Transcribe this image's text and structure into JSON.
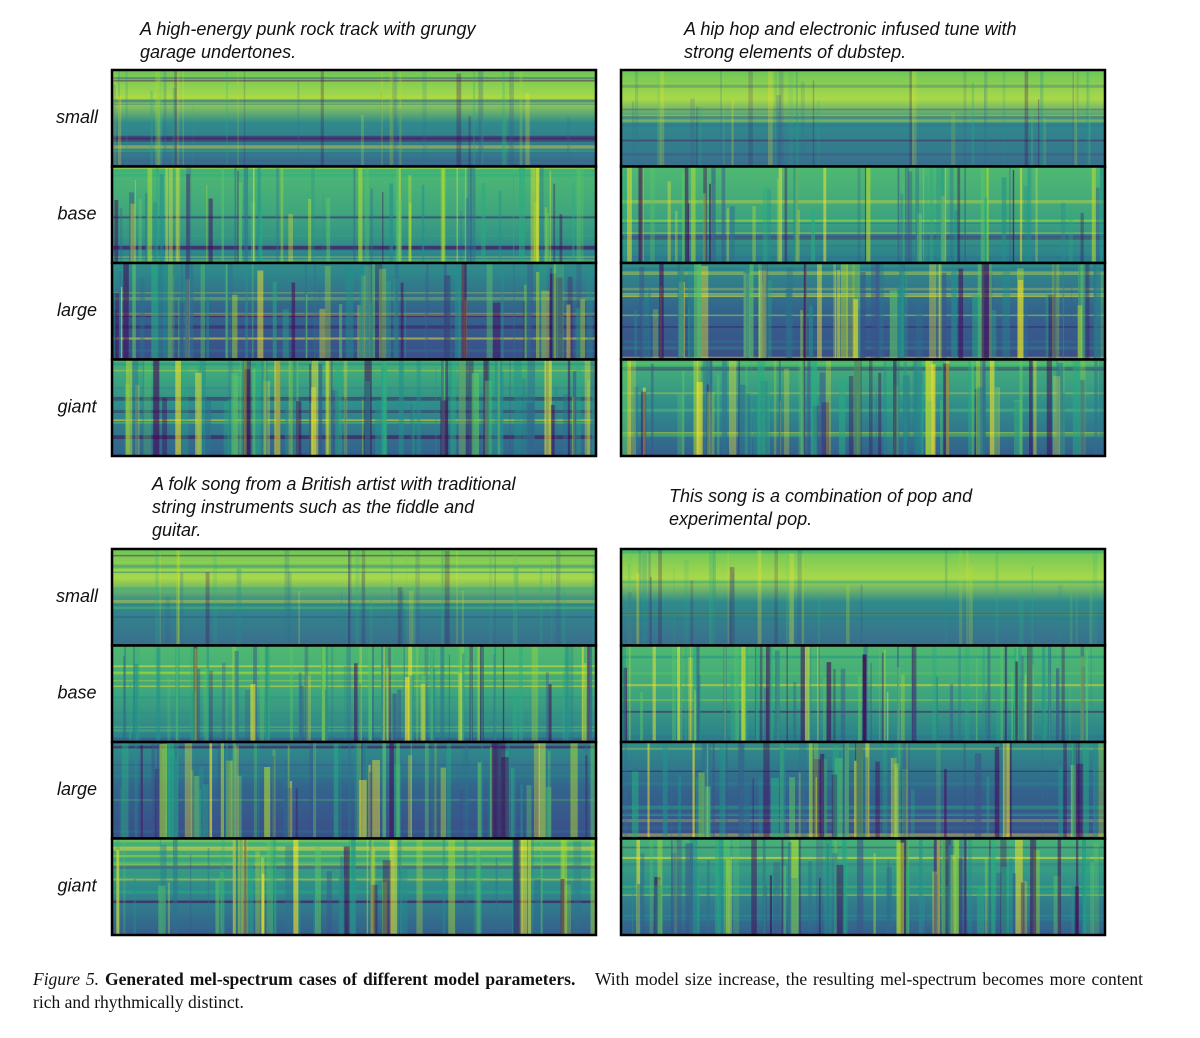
{
  "figure": {
    "groups": [
      {
        "row_labels": [
          "small",
          "base",
          "large",
          "giant"
        ],
        "panels": [
          {
            "title_lines": [
              "A high-energy punk rock track with grungy",
              "garage undertones."
            ]
          },
          {
            "title_lines": [
              "A hip hop and electronic infused tune with",
              "strong elements of dubstep."
            ]
          }
        ]
      },
      {
        "row_labels": [
          "small",
          "base",
          "large",
          "giant"
        ],
        "panels": [
          {
            "title_lines": [
              "A folk song from a British artist with traditional",
              "string instruments such as the fiddle and",
              "guitar."
            ]
          },
          {
            "title_lines": [
              "This song is a combination of pop and",
              "experimental pop."
            ]
          }
        ]
      }
    ],
    "caption": {
      "label": "Figure 5.",
      "bold": "Generated mel-spectrum cases of different model parameters.",
      "text": "With model size increase, the resulting mel-spectrum becomes more content rich and rhythmically distinct."
    }
  }
}
